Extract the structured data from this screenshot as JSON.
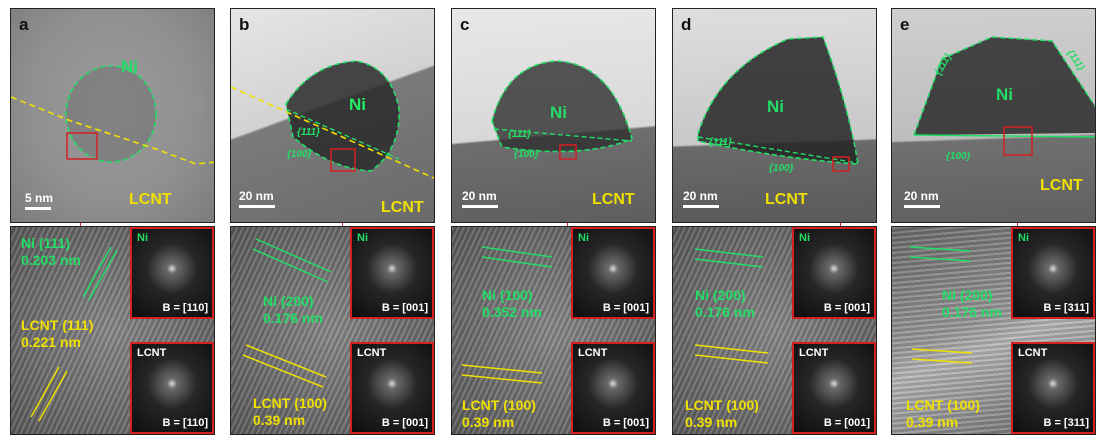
{
  "panels": [
    {
      "letter": "a",
      "ni_label": "Ni",
      "lcnt_label": "LCNT",
      "scale": "5 nm",
      "facets": [],
      "hr_ni": [
        "Ni (111)",
        "0.203 nm"
      ],
      "hr_lcnt": [
        "LCNT (111)",
        "0.221 nm"
      ],
      "inset_ni": {
        "title": "Ni",
        "zone": "B = [110]"
      },
      "inset_lcnt": {
        "title": "LCNT",
        "zone": "B = [110]"
      }
    },
    {
      "letter": "b",
      "ni_label": "Ni",
      "lcnt_label": "LCNT",
      "scale": "20 nm",
      "facets": [
        "{111}",
        "{100}"
      ],
      "hr_ni": [
        "Ni (200)",
        "0.176 nm"
      ],
      "hr_lcnt": [
        "LCNT (100)",
        "0.39 nm"
      ],
      "inset_ni": {
        "title": "Ni",
        "zone": "B = [001]"
      },
      "inset_lcnt": {
        "title": "LCNT",
        "zone": "B = [001]"
      }
    },
    {
      "letter": "c",
      "ni_label": "Ni",
      "lcnt_label": "LCNT",
      "scale": "20 nm",
      "facets": [
        "{111}",
        "{100}"
      ],
      "hr_ni": [
        "Ni (100)",
        "0.352 nm"
      ],
      "hr_lcnt": [
        "LCNT (100)",
        "0.39 nm"
      ],
      "inset_ni": {
        "title": "Ni",
        "zone": "B = [001]"
      },
      "inset_lcnt": {
        "title": "LCNT",
        "zone": "B = [001]"
      }
    },
    {
      "letter": "d",
      "ni_label": "Ni",
      "lcnt_label": "LCNT",
      "scale": "20 nm",
      "facets": [
        "{111}",
        "{100}"
      ],
      "hr_ni": [
        "Ni (200)",
        "0.176 nm"
      ],
      "hr_lcnt": [
        "LCNT (100)",
        "0.39 nm"
      ],
      "inset_ni": {
        "title": "Ni",
        "zone": "B = [001]"
      },
      "inset_lcnt": {
        "title": "LCNT",
        "zone": "B = [001]"
      }
    },
    {
      "letter": "e",
      "ni_label": "Ni",
      "lcnt_label": "LCNT",
      "scale": "20 nm",
      "facets": [
        "{111}",
        "{111}",
        "{100}"
      ],
      "hr_ni": [
        "Ni (200)",
        "0.176 nm"
      ],
      "hr_lcnt": [
        "LCNT (100)",
        "0.39 nm"
      ],
      "inset_ni": {
        "title": "Ni",
        "zone": "B = [311]"
      },
      "inset_lcnt": {
        "title": "LCNT",
        "zone": "B = [311]"
      }
    }
  ],
  "colors": {
    "ni": "#22dd66",
    "lcnt": "#f0e000",
    "highlight_box": "#d42020"
  }
}
